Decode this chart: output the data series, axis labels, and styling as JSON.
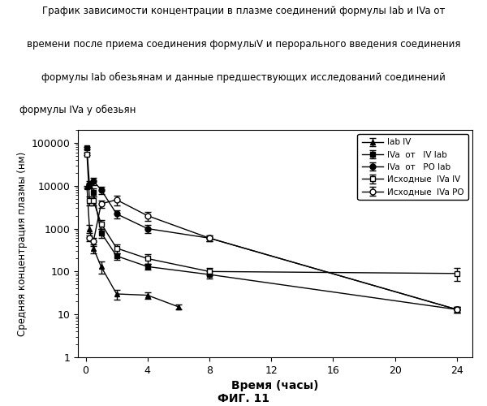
{
  "ylabel": "Средняя концентрация плазмы (нм)",
  "xlabel": "Время (часы)",
  "fig_label": "ФИГ. 11",
  "title_lines": [
    "График зависимости концентрации в плазме соединений формулы Iab и IVa от",
    "времени после приема соединения формулыV и перорального введения соединения",
    "формулы Iab обезьянам и данные предшествующих исследований соединений",
    "формулы IVa у обезьян"
  ],
  "title_align": [
    "center",
    "center",
    "center",
    "left"
  ],
  "series": [
    {
      "label": "Iab IV",
      "marker": "^",
      "fillstyle": "full",
      "x": [
        0.083,
        0.25,
        0.5,
        1,
        2,
        4,
        6
      ],
      "y": [
        9500,
        1000,
        350,
        130,
        30,
        28,
        15
      ],
      "yerr_lo": [
        500,
        200,
        80,
        40,
        8,
        5,
        2
      ],
      "yerr_hi": [
        500,
        200,
        80,
        40,
        8,
        5,
        2
      ]
    },
    {
      "label": "IVa  от   IV lab",
      "marker": "s",
      "fillstyle": "full",
      "x": [
        0.083,
        0.25,
        0.5,
        1,
        2,
        4,
        8,
        24
      ],
      "y": [
        75000,
        10000,
        7000,
        800,
        230,
        130,
        85,
        13
      ],
      "yerr_lo": [
        5000,
        1500,
        1500,
        200,
        40,
        20,
        15,
        2
      ],
      "yerr_hi": [
        5000,
        1500,
        1500,
        200,
        40,
        20,
        15,
        2
      ]
    },
    {
      "label": "IVa  от   PO lab",
      "marker": "o",
      "fillstyle": "full",
      "x": [
        0.25,
        0.5,
        1,
        2,
        4,
        8,
        24
      ],
      "y": [
        11000,
        13000,
        8000,
        2200,
        1000,
        600,
        13
      ],
      "yerr_lo": [
        2000,
        2500,
        1500,
        500,
        200,
        100,
        2
      ],
      "yerr_hi": [
        2000,
        2500,
        1500,
        500,
        200,
        100,
        2
      ]
    },
    {
      "label": "Исходные  IVa IV",
      "marker": "s",
      "fillstyle": "none",
      "x": [
        0.083,
        0.25,
        0.5,
        1,
        2,
        4,
        8,
        24
      ],
      "y": [
        55000,
        4500,
        4500,
        1300,
        350,
        200,
        100,
        90
      ],
      "yerr_lo": [
        3000,
        1000,
        1000,
        300,
        80,
        50,
        20,
        30
      ],
      "yerr_hi": [
        3000,
        1000,
        1000,
        300,
        80,
        50,
        20,
        30
      ]
    },
    {
      "label": "Исходные  IVa PO",
      "marker": "o",
      "fillstyle": "none",
      "x": [
        0.25,
        0.5,
        1,
        2,
        4,
        8,
        24
      ],
      "y": [
        600,
        500,
        3800,
        4700,
        2000,
        600,
        13
      ],
      "yerr_lo": [
        100,
        100,
        800,
        1200,
        500,
        100,
        2
      ],
      "yerr_hi": [
        100,
        100,
        800,
        1200,
        500,
        100,
        2
      ]
    }
  ]
}
